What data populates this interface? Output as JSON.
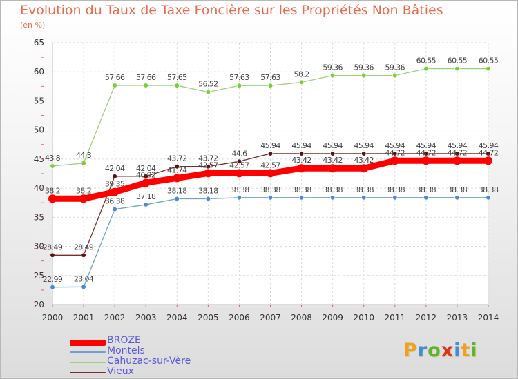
{
  "chart_data": {
    "type": "line",
    "title": "Evolution du Taux de Taxe Foncière sur les Propriétés Non Bâties",
    "ylabel": "(en %)",
    "xlabel": "",
    "x": [
      "2000",
      "2001",
      "2002",
      "2003",
      "2004",
      "2005",
      "2006",
      "2007",
      "2008",
      "2009",
      "2010",
      "2011",
      "2012",
      "2013",
      "2014"
    ],
    "ylim": [
      20,
      65
    ],
    "yticks": [
      20,
      25,
      30,
      35,
      40,
      45,
      50,
      55,
      60,
      65
    ],
    "grid": true,
    "series": [
      {
        "name": "Vieux",
        "color": "#7d2a2a",
        "marker": "#5a1212",
        "values": [
          28.49,
          28.49,
          42.04,
          42.04,
          43.72,
          43.72,
          44.6,
          45.94,
          45.94,
          45.94,
          45.94,
          45.94,
          45.94,
          45.94,
          45.94
        ],
        "labels": [
          "28.49",
          "28.49",
          "42.04",
          "42.04",
          "43.72",
          "43.72",
          "44.6",
          "45.94",
          "45.94",
          "45.94",
          "45.94",
          "45.94",
          "45.94",
          "45.94",
          "45.94"
        ]
      },
      {
        "name": "Cahuzac-sur-Vère",
        "color": "#9ad07a",
        "marker": "#7ccc3c",
        "values": [
          43.8,
          44.3,
          57.66,
          57.66,
          57.65,
          56.52,
          57.63,
          57.63,
          58.2,
          59.36,
          59.36,
          59.36,
          60.55,
          60.55,
          60.55
        ],
        "labels": [
          "43.8",
          "44.3",
          "57.66",
          "57.66",
          "57.65",
          "56.52",
          "57.63",
          "57.63",
          "58.2",
          "59.36",
          "59.36",
          "59.36",
          "60.55",
          "60.55",
          "60.55"
        ]
      },
      {
        "name": "Montels",
        "color": "#6e9fd0",
        "marker": "#4d8ad0",
        "values": [
          22.99,
          23.04,
          36.38,
          37.18,
          38.18,
          38.18,
          38.38,
          38.38,
          38.38,
          38.38,
          38.38,
          38.38,
          38.38,
          38.38,
          38.38
        ],
        "labels": [
          "22.99",
          "23.04",
          "36.38",
          "37.18",
          "38.18",
          "38.18",
          "38.38",
          "38.38",
          "38.38",
          "38.38",
          "38.38",
          "38.38",
          "38.38",
          "38.38",
          "38.38"
        ]
      },
      {
        "name": "BROZE",
        "color": "#ff0000",
        "marker": "#ff0000",
        "values": [
          38.2,
          38.2,
          39.35,
          40.92,
          41.74,
          42.57,
          42.57,
          42.57,
          43.42,
          43.42,
          43.42,
          44.72,
          44.72,
          44.72,
          44.72
        ],
        "labels": [
          "38.2",
          "38.2",
          "39.35",
          "40.92",
          "41.74",
          "42.57",
          "42.57",
          "42.57",
          "43.42",
          "43.42",
          "43.42",
          "44.72",
          "44.72",
          "44.72",
          "44.72"
        ]
      }
    ]
  },
  "legend": [
    {
      "name": "BROZE",
      "color": "#ff0000",
      "thickness": "thick"
    },
    {
      "name": "Montels",
      "color": "#6e9fd0",
      "thickness": "thin"
    },
    {
      "name": "Cahuzac-sur-Vère",
      "color": "#9ad07a",
      "thickness": "thin"
    },
    {
      "name": "Vieux",
      "color": "#7d2a2a",
      "thickness": "thin"
    }
  ],
  "logo": {
    "text": "Proxiti",
    "letters": [
      {
        "ch": "P",
        "color": "#f0a020"
      },
      {
        "ch": "r",
        "color": "#3d8fd6"
      },
      {
        "ch": "o",
        "color": "#5ab530"
      },
      {
        "ch": "x",
        "color": "#e03020"
      },
      {
        "ch": "i",
        "color": "#3d8fd6"
      },
      {
        "ch": "t",
        "color": "#f0a020"
      },
      {
        "ch": "i",
        "color": "#5ab530"
      }
    ]
  }
}
